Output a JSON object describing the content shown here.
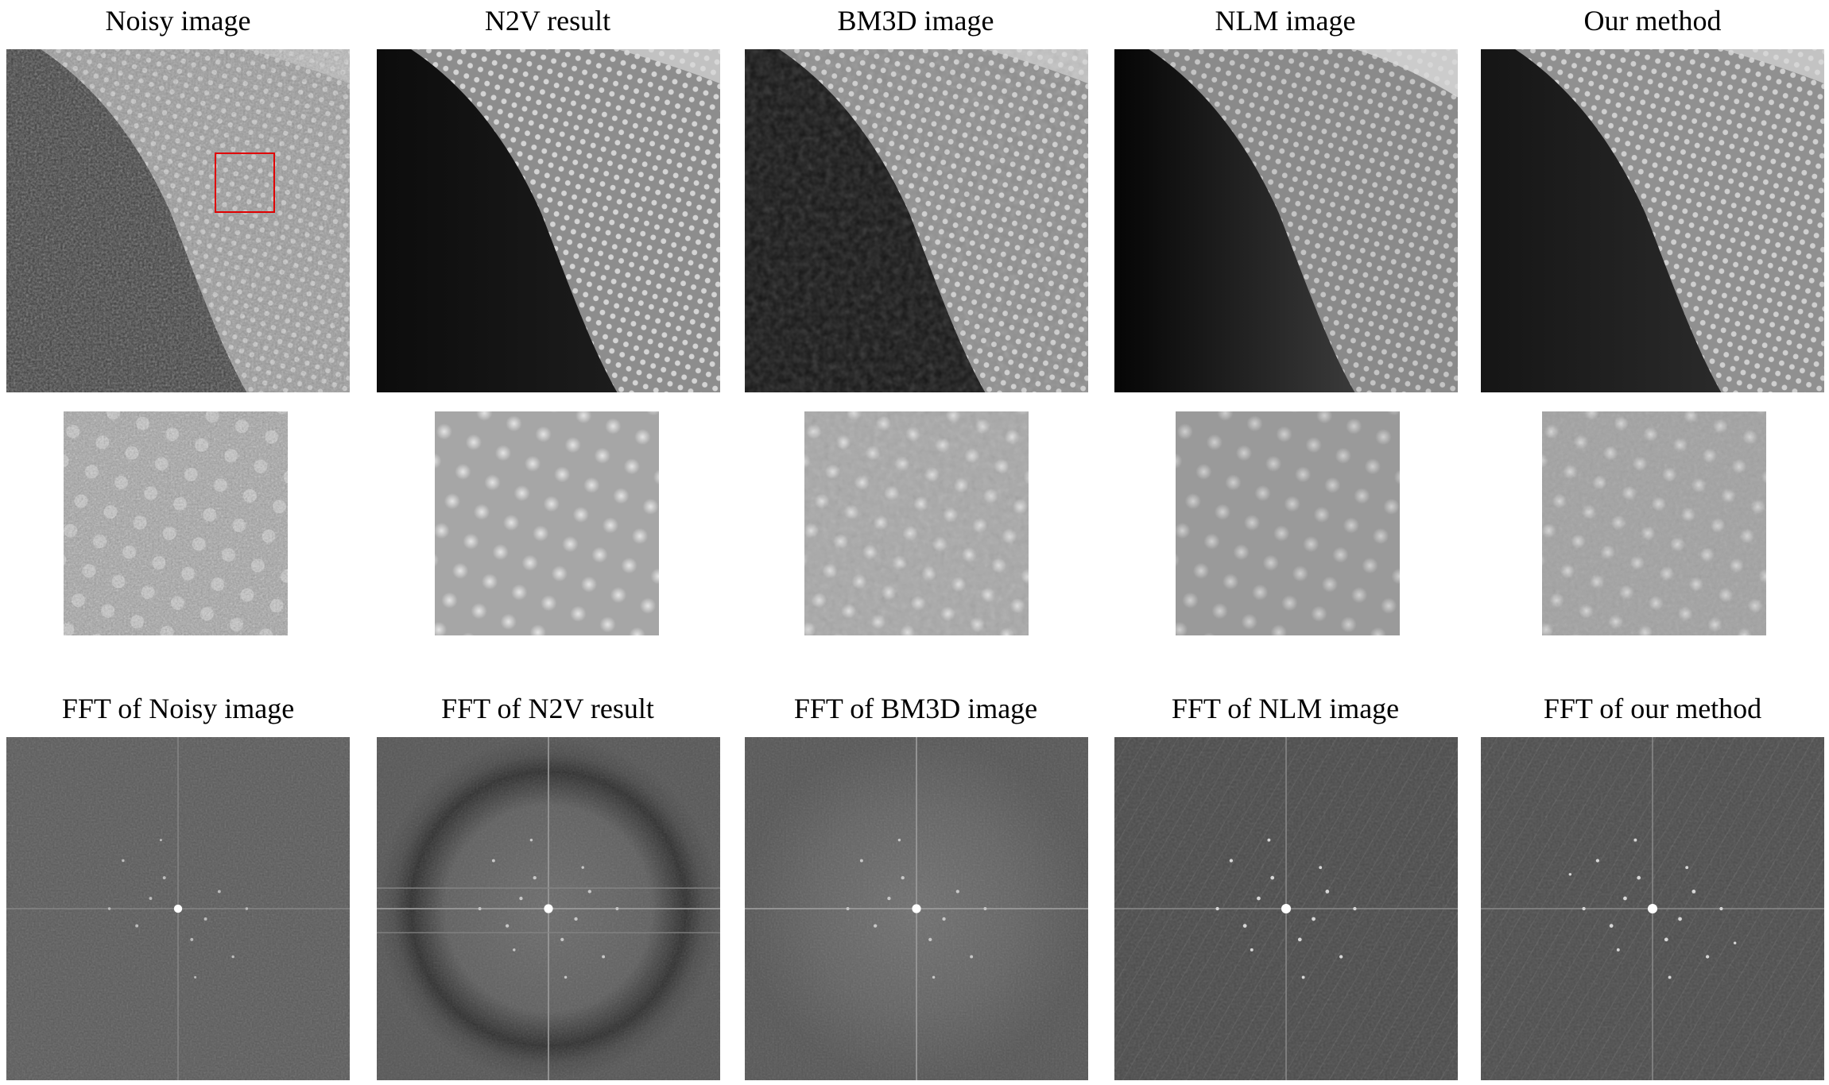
{
  "figure": {
    "columns": [
      {
        "id": "noisy",
        "title": "Noisy image",
        "fft_title": "FFT of Noisy image"
      },
      {
        "id": "n2v",
        "title": "N2V result",
        "fft_title": "FFT of N2V result"
      },
      {
        "id": "bm3d",
        "title": "BM3D image",
        "fft_title": "FFT of BM3D image"
      },
      {
        "id": "nlm",
        "title": "NLM image",
        "fft_title": "FFT of NLM image"
      },
      {
        "id": "ours",
        "title": "Our method",
        "fft_title": "FFT of our method"
      }
    ],
    "roi_color": "#e00000"
  }
}
